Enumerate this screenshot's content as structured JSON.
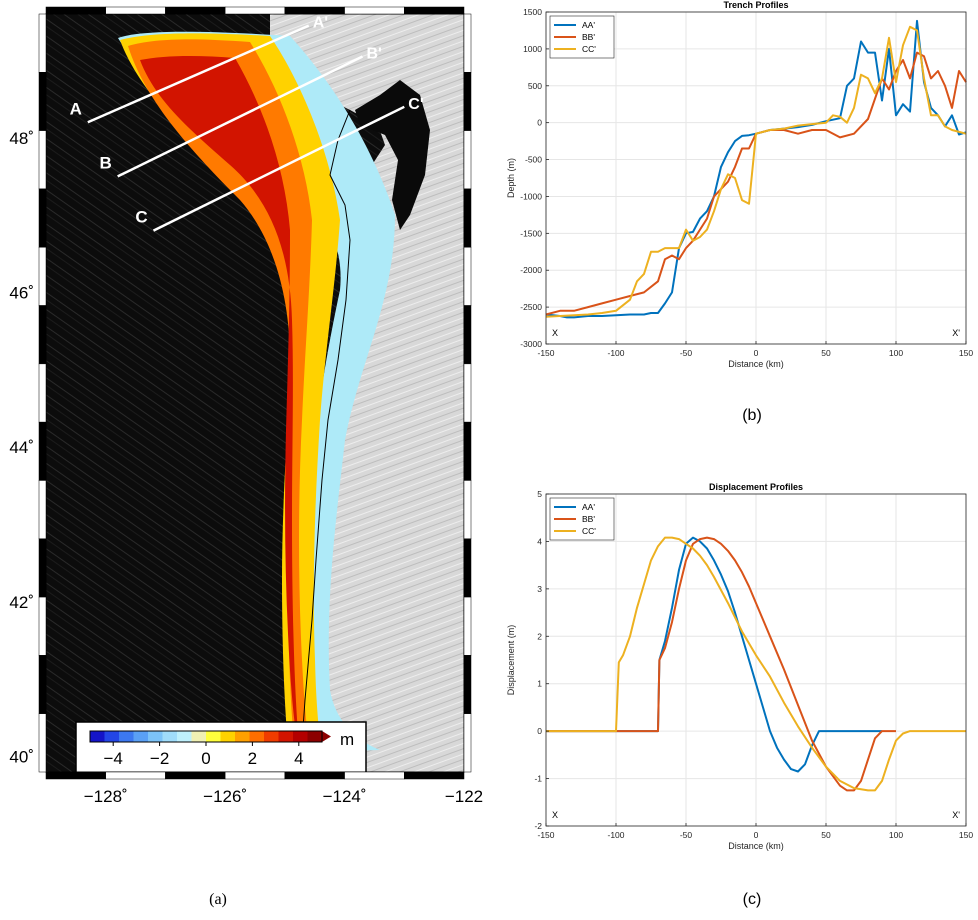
{
  "map": {
    "panel_label": "(a)",
    "x_ticks": [
      {
        "value": -128,
        "label": "−128˚"
      },
      {
        "value": -126,
        "label": "−126˚"
      },
      {
        "value": -124,
        "label": "−124˚"
      },
      {
        "value": -122,
        "label": "−122"
      }
    ],
    "y_ticks": [
      {
        "value": 40,
        "label": "40˚"
      },
      {
        "value": 42,
        "label": "42˚"
      },
      {
        "value": 44,
        "label": "44˚"
      },
      {
        "value": 46,
        "label": "46˚"
      },
      {
        "value": 48,
        "label": "48˚"
      }
    ],
    "lon_range": [
      -129,
      -122
    ],
    "lat_range": [
      39.8,
      49.6
    ],
    "profiles": [
      {
        "start": "A",
        "end": "A'",
        "start_lonlat": [
          -128.3,
          48.2
        ],
        "end_lonlat": [
          -124.6,
          49.45
        ]
      },
      {
        "start": "B",
        "end": "B'",
        "start_lonlat": [
          -127.8,
          47.5
        ],
        "end_lonlat": [
          -123.7,
          49.05
        ]
      },
      {
        "start": "C",
        "end": "C'",
        "start_lonlat": [
          -127.2,
          46.8
        ],
        "end_lonlat": [
          -123.0,
          48.4
        ]
      }
    ],
    "colorbar": {
      "unit": "m",
      "tick_labels": [
        "−4",
        "−2",
        "0",
        "2",
        "4"
      ],
      "colors": [
        "#1414c8",
        "#2346e6",
        "#3c78f0",
        "#5aa0f5",
        "#7cc3f8",
        "#a0dcfa",
        "#bff0fc",
        "#f0f0b4",
        "#ffff3c",
        "#ffd200",
        "#ffa000",
        "#ff6e00",
        "#f03c00",
        "#d21400",
        "#b40000",
        "#8c0000"
      ]
    }
  },
  "chart_data": [
    {
      "type": "line",
      "panel_label": "(b)",
      "title": "Trench Profiles",
      "xlabel": "Distance (km)",
      "ylabel": "Depth (m)",
      "xlim": [
        -150,
        150
      ],
      "ylim": [
        -3000,
        1500
      ],
      "xticks": [
        -150,
        -100,
        -50,
        0,
        50,
        100,
        150
      ],
      "yticks": [
        -3000,
        -2500,
        -2000,
        -1500,
        -1000,
        -500,
        0,
        500,
        1000,
        1500
      ],
      "grid": true,
      "legend": "top-left",
      "corner_labels": {
        "left": "X",
        "right": "X'"
      },
      "series": [
        {
          "name": "AA'",
          "color": "#0072bd",
          "x": [
            -150,
            -140,
            -135,
            -130,
            -120,
            -110,
            -100,
            -90,
            -80,
            -75,
            -70,
            -65,
            -60,
            -55,
            -50,
            -45,
            -40,
            -35,
            -30,
            -25,
            -20,
            -15,
            -10,
            -5,
            0,
            10,
            20,
            30,
            40,
            50,
            55,
            60,
            65,
            70,
            75,
            80,
            85,
            90,
            95,
            100,
            105,
            110,
            115,
            120,
            125,
            130,
            135,
            140,
            145,
            150
          ],
          "y": [
            -2600,
            -2620,
            -2640,
            -2640,
            -2620,
            -2620,
            -2610,
            -2600,
            -2600,
            -2580,
            -2580,
            -2450,
            -2300,
            -1700,
            -1500,
            -1480,
            -1300,
            -1200,
            -1000,
            -600,
            -400,
            -250,
            -180,
            -170,
            -150,
            -100,
            -80,
            -60,
            -30,
            20,
            40,
            60,
            500,
            600,
            1100,
            950,
            950,
            300,
            1000,
            100,
            250,
            150,
            1380,
            550,
            200,
            100,
            -50,
            100,
            -160,
            -130
          ]
        },
        {
          "name": "BB'",
          "color": "#d95319",
          "x": [
            -150,
            -140,
            -130,
            -120,
            -110,
            -100,
            -90,
            -80,
            -70,
            -65,
            -60,
            -55,
            -50,
            -45,
            -40,
            -35,
            -30,
            -25,
            -20,
            -15,
            -10,
            -5,
            0,
            10,
            20,
            30,
            40,
            50,
            60,
            70,
            80,
            90,
            95,
            100,
            105,
            110,
            115,
            120,
            125,
            130,
            135,
            140,
            145,
            150
          ],
          "y": [
            -2600,
            -2550,
            -2550,
            -2500,
            -2450,
            -2400,
            -2350,
            -2300,
            -2150,
            -1850,
            -1800,
            -1850,
            -1700,
            -1600,
            -1450,
            -1300,
            -1000,
            -900,
            -800,
            -600,
            -350,
            -350,
            -150,
            -100,
            -100,
            -150,
            -100,
            -100,
            -200,
            -150,
            50,
            600,
            450,
            700,
            850,
            600,
            950,
            900,
            600,
            700,
            500,
            200,
            700,
            550
          ]
        },
        {
          "name": "CC'",
          "color": "#edb120",
          "x": [
            -150,
            -140,
            -130,
            -120,
            -110,
            -100,
            -90,
            -85,
            -80,
            -75,
            -70,
            -65,
            -60,
            -55,
            -50,
            -45,
            -40,
            -35,
            -30,
            -25,
            -20,
            -15,
            -10,
            -5,
            0,
            10,
            20,
            30,
            40,
            50,
            55,
            60,
            65,
            70,
            75,
            80,
            85,
            90,
            95,
            100,
            105,
            110,
            115,
            120,
            125,
            130,
            135,
            140,
            150
          ],
          "y": [
            -2630,
            -2620,
            -2610,
            -2600,
            -2580,
            -2550,
            -2400,
            -2150,
            -2050,
            -1750,
            -1750,
            -1700,
            -1700,
            -1700,
            -1450,
            -1600,
            -1550,
            -1450,
            -1200,
            -900,
            -700,
            -750,
            -1050,
            -1100,
            -150,
            -100,
            -80,
            -40,
            -20,
            0,
            100,
            80,
            0,
            200,
            650,
            600,
            400,
            600,
            1150,
            550,
            1050,
            1300,
            1250,
            600,
            100,
            100,
            -50,
            -100,
            -150
          ]
        }
      ]
    },
    {
      "type": "line",
      "panel_label": "(c)",
      "title": "Displacement Profiles",
      "xlabel": "Distance (km)",
      "ylabel": "Displacement (m)",
      "xlim": [
        -150,
        150
      ],
      "ylim": [
        -2,
        5
      ],
      "xticks": [
        -150,
        -100,
        -50,
        0,
        50,
        100,
        150
      ],
      "yticks": [
        -2,
        -1,
        0,
        1,
        2,
        3,
        4,
        5
      ],
      "grid": true,
      "legend": "top-left",
      "corner_labels": {
        "left": "X",
        "right": "X'"
      },
      "series": [
        {
          "name": "AA'",
          "color": "#0072bd",
          "x": [
            -150,
            -70,
            -69,
            -65,
            -60,
            -55,
            -50,
            -45,
            -40,
            -35,
            -30,
            -25,
            -20,
            -15,
            -10,
            -5,
            0,
            5,
            10,
            15,
            20,
            25,
            30,
            35,
            40,
            45,
            50,
            90
          ],
          "y": [
            0,
            0,
            1.5,
            1.9,
            2.6,
            3.4,
            3.95,
            4.08,
            4.0,
            3.85,
            3.6,
            3.3,
            2.95,
            2.5,
            2.0,
            1.5,
            1.0,
            0.5,
            0.0,
            -0.35,
            -0.6,
            -0.8,
            -0.85,
            -0.7,
            -0.3,
            0,
            0,
            0
          ]
        },
        {
          "name": "BB'",
          "color": "#d95319",
          "x": [
            -150,
            -70,
            -69,
            -65,
            -60,
            -55,
            -50,
            -45,
            -40,
            -35,
            -30,
            -25,
            -20,
            -15,
            -10,
            -5,
            0,
            10,
            20,
            30,
            40,
            50,
            60,
            65,
            70,
            75,
            80,
            85,
            90,
            100
          ],
          "y": [
            0,
            0,
            1.5,
            1.75,
            2.3,
            3.0,
            3.6,
            3.95,
            4.05,
            4.08,
            4.05,
            3.95,
            3.8,
            3.6,
            3.35,
            3.05,
            2.7,
            2.0,
            1.3,
            0.55,
            -0.2,
            -0.75,
            -1.15,
            -1.25,
            -1.25,
            -1.05,
            -0.6,
            -0.15,
            0,
            0
          ]
        },
        {
          "name": "CC'",
          "color": "#edb120",
          "x": [
            -150,
            -100,
            -98,
            -95,
            -90,
            -85,
            -80,
            -75,
            -70,
            -65,
            -60,
            -55,
            -50,
            -45,
            -40,
            -35,
            -30,
            -20,
            -10,
            0,
            10,
            20,
            30,
            40,
            50,
            60,
            70,
            80,
            85,
            90,
            95,
            100,
            105,
            110,
            150
          ],
          "y": [
            0,
            0,
            1.45,
            1.6,
            2.0,
            2.6,
            3.1,
            3.6,
            3.9,
            4.08,
            4.08,
            4.05,
            3.95,
            3.85,
            3.7,
            3.5,
            3.25,
            2.7,
            2.1,
            1.6,
            1.15,
            0.6,
            0.1,
            -0.35,
            -0.75,
            -1.05,
            -1.2,
            -1.25,
            -1.25,
            -1.05,
            -0.6,
            -0.2,
            -0.05,
            0,
            0
          ]
        }
      ]
    }
  ]
}
